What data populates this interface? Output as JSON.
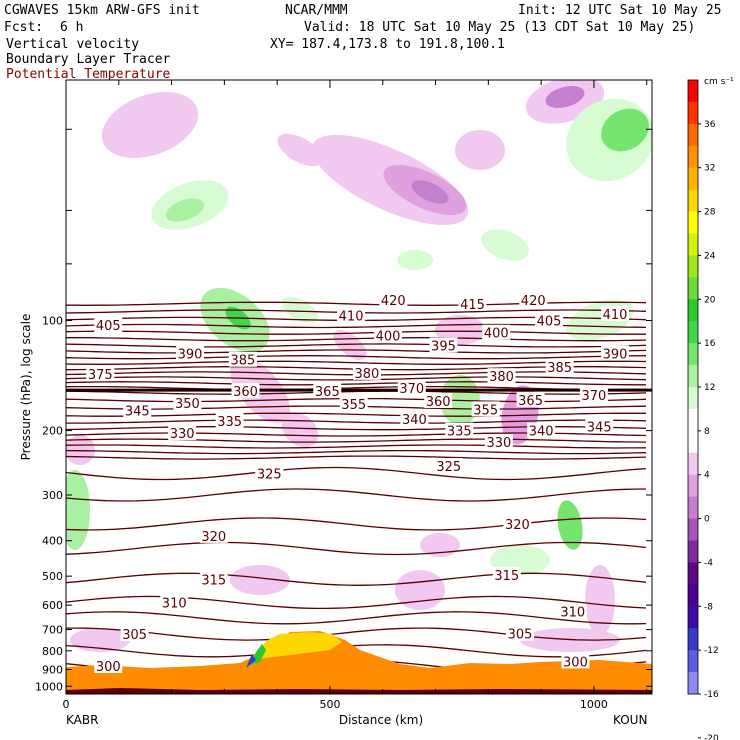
{
  "header": {
    "model": "CGWAVES 15km ARW-GFS init",
    "forecast_label": "Fcst:",
    "forecast_value": "6 h",
    "center": "NCAR/MMM",
    "init": "Init: 12 UTC Sat 10 May 25",
    "valid": "Valid: 18 UTC Sat 10 May 25 (13 CDT Sat 10 May 25)",
    "xy": "XY= 187.4,173.8 to 191.8,100.1",
    "field1": "Vertical velocity",
    "field2": "Boundary Layer Tracer",
    "field3": "Potential Temperature"
  },
  "colors": {
    "theta": "#5a0000",
    "terrain": "#ff8c00",
    "field3_text": "#8b0000"
  },
  "chart_data": {
    "type": "cross-section",
    "xlabel": "Distance (km)",
    "ylabel": "Pressure (hPa), log scale",
    "x_ticks": [
      {
        "value": 0,
        "label": "0"
      },
      {
        "value": 500,
        "label": "500"
      },
      {
        "value": 1000,
        "label": "1000"
      }
    ],
    "xlim": [
      0,
      1110
    ],
    "ylim": [
      1050,
      22
    ],
    "y_ticks": [
      {
        "value": 1000,
        "label": "1000"
      },
      {
        "value": 900,
        "label": "900"
      },
      {
        "value": 800,
        "label": "800"
      },
      {
        "value": 700,
        "label": "700"
      },
      {
        "value": 600,
        "label": "600"
      },
      {
        "value": 500,
        "label": "500"
      },
      {
        "value": 400,
        "label": "400"
      },
      {
        "value": 300,
        "label": "300"
      },
      {
        "value": 200,
        "label": "200"
      },
      {
        "value": 100,
        "label": "100"
      }
    ],
    "left_station": "KABR",
    "right_station": "KOUN",
    "colorbar": {
      "unit": "cm s⁻¹",
      "labels": [
        "36",
        "32",
        "28",
        "24",
        "20",
        "16",
        "12",
        "8",
        "4",
        "0",
        "-4",
        "-8",
        "-12",
        "-16",
        "-20"
      ],
      "colors": [
        "#ff0000",
        "#ff3300",
        "#ff6a00",
        "#ff9000",
        "#ffb300",
        "#ffd700",
        "#ffff00",
        "#d4f20f",
        "#a0e61e",
        "#6ada3a",
        "#2bc92b",
        "#3fd64a",
        "#75e570",
        "#a9f0a3",
        "#d7fbd3",
        "#ffffff",
        "#ffffff",
        "#f0c8f0",
        "#e0a0e0",
        "#c57fcf",
        "#a355b8",
        "#7d2a9e",
        "#5a0a85",
        "#4a0090",
        "#3b0ba8",
        "#3a3ac8",
        "#5a60e0",
        "#8c8cf0"
      ]
    },
    "theta_labels": [
      {
        "text": "420",
        "x": 620,
        "p": 88
      },
      {
        "text": "415",
        "x": 770,
        "p": 90
      },
      {
        "text": "420",
        "x": 885,
        "p": 88
      },
      {
        "text": "405",
        "x": 80,
        "p": 103
      },
      {
        "text": "410",
        "x": 540,
        "p": 97
      },
      {
        "text": "405",
        "x": 915,
        "p": 100
      },
      {
        "text": "410",
        "x": 1040,
        "p": 96
      },
      {
        "text": "400",
        "x": 610,
        "p": 110
      },
      {
        "text": "400",
        "x": 815,
        "p": 108
      },
      {
        "text": "395",
        "x": 715,
        "p": 117
      },
      {
        "text": "390",
        "x": 235,
        "p": 123
      },
      {
        "text": "385",
        "x": 335,
        "p": 128
      },
      {
        "text": "390",
        "x": 1040,
        "p": 123
      },
      {
        "text": "385",
        "x": 935,
        "p": 134
      },
      {
        "text": "375",
        "x": 65,
        "p": 140
      },
      {
        "text": "380",
        "x": 570,
        "p": 139
      },
      {
        "text": "380",
        "x": 825,
        "p": 142
      },
      {
        "text": "370",
        "x": 655,
        "p": 153
      },
      {
        "text": "360",
        "x": 340,
        "p": 156
      },
      {
        "text": "365",
        "x": 495,
        "p": 156
      },
      {
        "text": "370",
        "x": 1000,
        "p": 160
      },
      {
        "text": "350",
        "x": 230,
        "p": 168
      },
      {
        "text": "355",
        "x": 545,
        "p": 169
      },
      {
        "text": "360",
        "x": 705,
        "p": 166
      },
      {
        "text": "365",
        "x": 880,
        "p": 165
      },
      {
        "text": "345",
        "x": 135,
        "p": 176
      },
      {
        "text": "355",
        "x": 795,
        "p": 175
      },
      {
        "text": "335",
        "x": 310,
        "p": 188
      },
      {
        "text": "340",
        "x": 660,
        "p": 186
      },
      {
        "text": "330",
        "x": 220,
        "p": 203
      },
      {
        "text": "335",
        "x": 745,
        "p": 200
      },
      {
        "text": "340",
        "x": 900,
        "p": 200
      },
      {
        "text": "345",
        "x": 1010,
        "p": 195
      },
      {
        "text": "330",
        "x": 820,
        "p": 215
      },
      {
        "text": "325",
        "x": 385,
        "p": 262
      },
      {
        "text": "325",
        "x": 725,
        "p": 250
      },
      {
        "text": "320",
        "x": 855,
        "p": 360
      },
      {
        "text": "320",
        "x": 280,
        "p": 388
      },
      {
        "text": "315",
        "x": 280,
        "p": 510
      },
      {
        "text": "315",
        "x": 835,
        "p": 496
      },
      {
        "text": "310",
        "x": 205,
        "p": 590
      },
      {
        "text": "310",
        "x": 960,
        "p": 625
      },
      {
        "text": "305",
        "x": 130,
        "p": 720
      },
      {
        "text": "305",
        "x": 860,
        "p": 718
      },
      {
        "text": "300",
        "x": 80,
        "p": 880
      },
      {
        "text": "300",
        "x": 965,
        "p": 855
      }
    ]
  }
}
